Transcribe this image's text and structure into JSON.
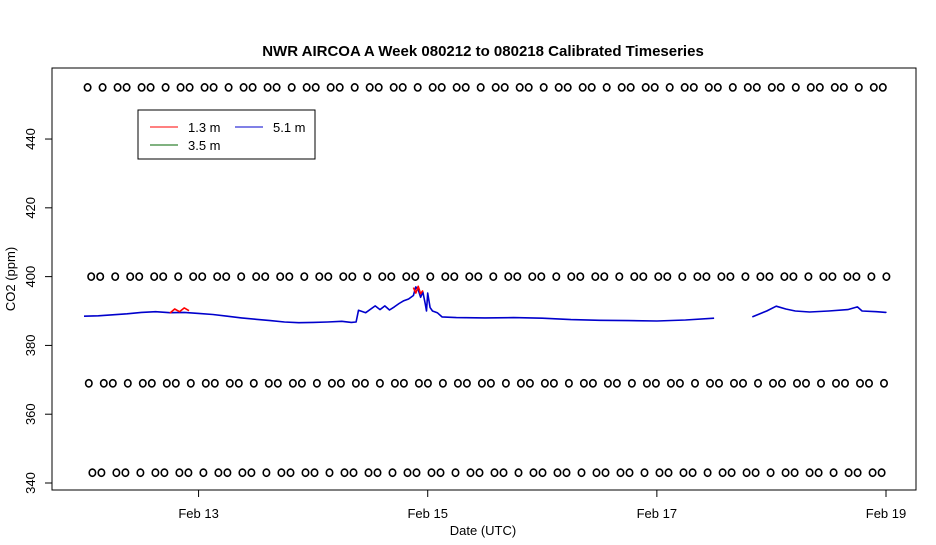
{
  "chart_data": {
    "type": "line",
    "title": "NWR AIRCOA A  Week 080212 to 080218  Calibrated Timeseries",
    "xlabel": "Date (UTC)",
    "ylabel": "CO2 (ppm)",
    "xlim": [
      "2008-02-12 00:00",
      "2008-02-19 00:00"
    ],
    "ylim": [
      340,
      456
    ],
    "x_ticks": [
      {
        "value": "2008-02-13",
        "label": "Feb 13"
      },
      {
        "value": "2008-02-15",
        "label": "Feb 15"
      },
      {
        "value": "2008-02-17",
        "label": "Feb 17"
      },
      {
        "value": "2008-02-19",
        "label": "Feb 19"
      }
    ],
    "y_ticks": [
      {
        "value": 340,
        "label": "340"
      },
      {
        "value": 360,
        "label": "360"
      },
      {
        "value": 380,
        "label": "380"
      },
      {
        "value": 400,
        "label": "400"
      },
      {
        "value": 420,
        "label": "420"
      },
      {
        "value": 440,
        "label": "440"
      }
    ],
    "legend_position": "top-left",
    "legend": [
      {
        "name": "1.3 m",
        "color": "#ff0000"
      },
      {
        "name": "5.1 m",
        "color": "#0000cc"
      },
      {
        "name": "3.5 m",
        "color": "#006400"
      }
    ],
    "series": [
      {
        "name": "1.3 m",
        "color": "#ff0000",
        "points": [
          [
            "2008-02-12 18:00",
            389.4
          ],
          [
            "2008-02-12 19:00",
            390.6
          ],
          [
            "2008-02-12 20:00",
            389.8
          ],
          [
            "2008-02-12 21:00",
            390.9
          ],
          [
            "2008-02-12 22:00",
            390.1
          ],
          [
            "2008-02-14 21:00",
            396.8
          ],
          [
            "2008-02-14 21:30",
            395.2
          ],
          [
            "2008-02-14 22:00",
            397.2
          ],
          [
            "2008-02-14 22:30",
            395.0
          ],
          [
            "2008-02-14 23:00",
            396.0
          ]
        ]
      },
      {
        "name": "5.1 m",
        "color": "#0000cc",
        "points": [
          [
            "2008-02-12 00:00",
            388.5
          ],
          [
            "2008-02-12 03:00",
            388.6
          ],
          [
            "2008-02-12 06:00",
            388.9
          ],
          [
            "2008-02-12 09:00",
            389.2
          ],
          [
            "2008-02-12 12:00",
            389.6
          ],
          [
            "2008-02-12 15:00",
            389.8
          ],
          [
            "2008-02-12 18:00",
            389.5
          ],
          [
            "2008-02-12 21:00",
            389.6
          ],
          [
            "2008-02-13 00:00",
            389.3
          ],
          [
            "2008-02-13 03:00",
            389.0
          ],
          [
            "2008-02-13 06:00",
            388.5
          ],
          [
            "2008-02-13 09:00",
            388.0
          ],
          [
            "2008-02-13 12:00",
            387.6
          ],
          [
            "2008-02-13 15:00",
            387.2
          ],
          [
            "2008-02-13 18:00",
            386.8
          ],
          [
            "2008-02-13 21:00",
            386.6
          ],
          [
            "2008-02-14 00:00",
            386.7
          ],
          [
            "2008-02-14 03:00",
            386.8
          ],
          [
            "2008-02-14 06:00",
            387.0
          ],
          [
            "2008-02-14 08:00",
            386.7
          ],
          [
            "2008-02-14 09:00",
            386.8
          ],
          [
            "2008-02-14 09:30",
            390.2
          ],
          [
            "2008-02-14 11:00",
            389.5
          ],
          [
            "2008-02-14 13:00",
            391.5
          ],
          [
            "2008-02-14 14:00",
            390.4
          ],
          [
            "2008-02-14 15:00",
            391.5
          ],
          [
            "2008-02-14 16:00",
            390.3
          ],
          [
            "2008-02-14 17:00",
            391.2
          ],
          [
            "2008-02-14 18:00",
            392.2
          ],
          [
            "2008-02-14 19:00",
            393.0
          ],
          [
            "2008-02-14 20:00",
            393.5
          ],
          [
            "2008-02-14 21:00",
            394.5
          ],
          [
            "2008-02-14 21:30",
            397.0
          ],
          [
            "2008-02-14 22:00",
            396.2
          ],
          [
            "2008-02-14 22:30",
            394.0
          ],
          [
            "2008-02-14 23:00",
            395.5
          ],
          [
            "2008-02-14 23:30",
            392.0
          ],
          [
            "2008-02-14 23:45",
            390.0
          ],
          [
            "2008-02-15 00:00",
            395.2
          ],
          [
            "2008-02-15 00:30",
            391.0
          ],
          [
            "2008-02-15 01:00",
            390.0
          ],
          [
            "2008-02-15 02:00",
            389.5
          ],
          [
            "2008-02-15 03:00",
            388.3
          ],
          [
            "2008-02-15 06:00",
            388.1
          ],
          [
            "2008-02-15 12:00",
            388.0
          ],
          [
            "2008-02-15 18:00",
            388.1
          ],
          [
            "2008-02-16 00:00",
            387.9
          ],
          [
            "2008-02-16 06:00",
            387.5
          ],
          [
            "2008-02-16 12:00",
            387.3
          ],
          [
            "2008-02-16 18:00",
            387.2
          ],
          [
            "2008-02-17 00:00",
            387.1
          ],
          [
            "2008-02-17 06:00",
            387.4
          ],
          [
            "2008-02-17 12:00",
            387.9
          ],
          [
            "2008-02-17 20:00",
            388.3
          ],
          [
            "2008-02-17 23:00",
            390.0
          ],
          [
            "2008-02-18 01:00",
            391.4
          ],
          [
            "2008-02-18 03:00",
            390.6
          ],
          [
            "2008-02-18 05:00",
            390.0
          ],
          [
            "2008-02-18 08:00",
            389.7
          ],
          [
            "2008-02-18 12:00",
            390.0
          ],
          [
            "2008-02-18 16:00",
            390.4
          ],
          [
            "2008-02-18 18:00",
            391.2
          ],
          [
            "2008-02-18 19:00",
            390.0
          ],
          [
            "2008-02-18 22:00",
            389.8
          ],
          [
            "2008-02-19 00:00",
            389.6
          ],
          [
            "2008-02-19 00:00",
            389.5
          ]
        ]
      }
    ],
    "flag_rows": [
      455,
      400,
      369,
      343
    ]
  }
}
